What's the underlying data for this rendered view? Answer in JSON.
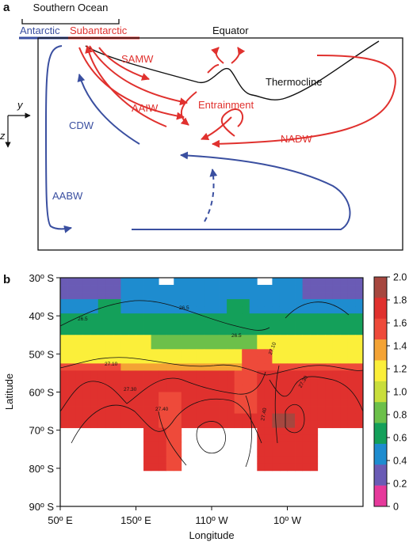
{
  "panel_a": {
    "panel_label": "a",
    "southern_ocean": "Southern Ocean",
    "antarctic": "Antarctic",
    "subantarctic": "Subantarctic",
    "equator": "Equator",
    "samw": "SAMW",
    "aaiw": "AAIW",
    "entrainment": "Entrainment",
    "thermocline": "Thermocline",
    "cdw": "CDW",
    "nadw": "NADW",
    "aabw": "AABW",
    "axis_y": "y",
    "axis_z": "z",
    "colors": {
      "red": "#e0312e",
      "blue": "#3a4fa0",
      "black": "#111111"
    }
  },
  "panel_b": {
    "panel_label": "b",
    "ylabel": "Latitude",
    "xlabel": "Longitude",
    "y_ticks": [
      "30º S",
      "40º S",
      "50º S",
      "60º S",
      "70º S",
      "80º S",
      "90º S"
    ],
    "x_ticks": [
      "50º E",
      "150º E",
      "110º W",
      "10º W"
    ],
    "colorbar_ticks": [
      "2.0",
      "1.8",
      "1.6",
      "1.4",
      "1.2",
      "1.0",
      "0.8",
      "0.6",
      "0.4",
      "0.2",
      "0"
    ],
    "colorbar_colors": [
      "#e6399b",
      "#6a5bb5",
      "#1e8ccf",
      "#14a05a",
      "#6cc04a",
      "#c9de3b",
      "#fbef3a",
      "#f4a334",
      "#ee4a3a",
      "#e0312e",
      "#a6473f"
    ],
    "contour_labels": [
      "26.5",
      "26.5",
      "26.5",
      "27.10",
      "27.10",
      "27.30",
      "27.30",
      "27.40",
      "27.40"
    ]
  },
  "chart_data": {
    "type": "heatmap",
    "xlabel": "Longitude",
    "ylabel": "Latitude",
    "x_ticks": [
      "50º E",
      "150º E",
      "110º W",
      "10º W"
    ],
    "y_ticks": [
      "30º S",
      "40º S",
      "50º S",
      "60º S",
      "70º S",
      "80º S",
      "90º S"
    ],
    "colorbar": {
      "min": 0,
      "max": 2.0,
      "ticks": [
        0,
        0.2,
        0.4,
        0.6,
        0.8,
        1.0,
        1.2,
        1.4,
        1.6,
        1.8,
        2.0
      ]
    },
    "contour_levels": [
      "26.5",
      "27.10",
      "27.30",
      "27.40"
    ],
    "latitude_bands": [
      {
        "lat": "30-35º S",
        "dominant_value": 0.4
      },
      {
        "lat": "35-40º S",
        "dominant_value": 0.5
      },
      {
        "lat": "40-45º S",
        "dominant_value": 0.8
      },
      {
        "lat": "45-50º S",
        "dominant_value": 1.3
      },
      {
        "lat": "50-55º S",
        "dominant_value": 1.2
      },
      {
        "lat": "55-70º S",
        "dominant_value": 1.7
      },
      {
        "lat": "70-80º S",
        "dominant_value": 1.5
      }
    ]
  }
}
